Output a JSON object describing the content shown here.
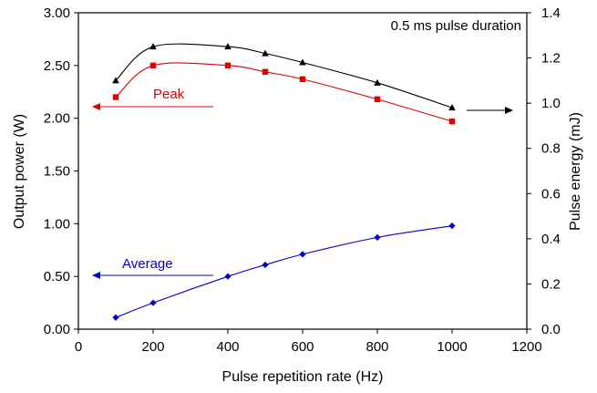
{
  "chart_data": {
    "type": "line",
    "xlabel": "Pulse repetition rate (Hz)",
    "ylabel_left": "Output power (W)",
    "ylabel_right": "Pulse energy (mJ)",
    "xlim": [
      0,
      1200
    ],
    "ylim_left": [
      0,
      3
    ],
    "ylim_right": [
      0,
      1.4
    ],
    "x_ticks": [
      "0",
      "200",
      "400",
      "600",
      "800",
      "1000",
      "1200"
    ],
    "y_left_ticks": [
      "0.00",
      "0.50",
      "1.00",
      "1.50",
      "2.00",
      "2.50",
      "3.00"
    ],
    "y_right_ticks": [
      "0.0",
      "0.2",
      "0.4",
      "0.6",
      "0.8",
      "1.0",
      "1.2",
      "1.4"
    ],
    "grid": false,
    "series": [
      {
        "name": "Peak",
        "axis": "left",
        "color": "#e00000",
        "marker": "square",
        "x": [
          100,
          200,
          400,
          500,
          600,
          800,
          1000
        ],
        "values": [
          2.2,
          2.5,
          2.5,
          2.44,
          2.37,
          2.18,
          1.97
        ]
      },
      {
        "name": "Average",
        "axis": "left",
        "color": "#0000cc",
        "marker": "diamond",
        "x": [
          100,
          200,
          400,
          500,
          600,
          800,
          1000
        ],
        "values": [
          0.11,
          0.25,
          0.5,
          0.61,
          0.71,
          0.87,
          0.98
        ]
      },
      {
        "name": "",
        "axis": "right",
        "color": "#000000",
        "marker": "triangle",
        "x": [
          100,
          200,
          400,
          500,
          600,
          800,
          1000
        ],
        "values": [
          1.1,
          1.25,
          1.25,
          1.22,
          1.18,
          1.09,
          0.98
        ]
      }
    ],
    "annotations": {
      "peak_label": "Peak",
      "average_label": "Average",
      "duration_label": "0.5 ms pulse duration"
    }
  }
}
